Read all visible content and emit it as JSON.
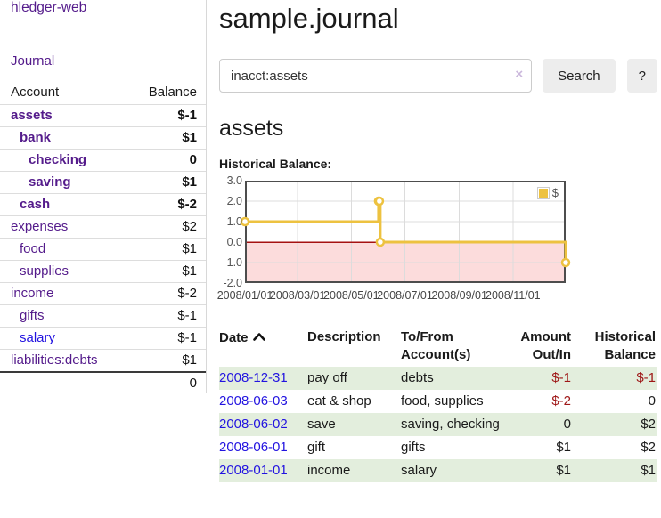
{
  "app": {
    "title": "hledger-web"
  },
  "colors": {
    "link_purple": "#541b8b",
    "link_blue": "#2213e0",
    "negative": "#9e1616",
    "negative_muted": "#c0797d",
    "row_stripe_green": "#e3eedd",
    "chart_line": "#edc240",
    "chart_negative_fill": "#fcdcdc",
    "chart_zero_line": "#a51212"
  },
  "sidebar": {
    "journal_link": "Journal",
    "table": {
      "account_header": "Account",
      "balance_header": "Balance",
      "rows": [
        {
          "account": "assets",
          "balance": "$-1",
          "depth": 0,
          "bold": true,
          "balance_style": "neg"
        },
        {
          "account": "bank",
          "balance": "$1",
          "depth": 1,
          "bold": true,
          "balance_style": "pos"
        },
        {
          "account": "checking",
          "balance": "0",
          "depth": 2,
          "bold": true,
          "balance_style": "pos"
        },
        {
          "account": "saving",
          "balance": "$1",
          "depth": 2,
          "bold": true,
          "balance_style": "pos"
        },
        {
          "account": "cash",
          "balance": "$-2",
          "depth": 1,
          "bold": true,
          "balance_style": "neg"
        },
        {
          "account": "expenses",
          "balance": "$2",
          "depth": 0,
          "bold": false,
          "balance_style": "pos"
        },
        {
          "account": "food",
          "balance": "$1",
          "depth": 1,
          "bold": false,
          "balance_style": "pos"
        },
        {
          "account": "supplies",
          "balance": "$1",
          "depth": 1,
          "bold": false,
          "balance_style": "pos"
        },
        {
          "account": "income",
          "balance": "$-2",
          "depth": 0,
          "bold": false,
          "balance_style": "mneg"
        },
        {
          "account": "gifts",
          "balance": "$-1",
          "depth": 1,
          "bold": false,
          "balance_style": "mneg"
        },
        {
          "account": "salary",
          "balance": "$-1",
          "depth": 1,
          "bold": false,
          "balance_style": "mneg",
          "link_color": "blue"
        },
        {
          "account": "liabilities:debts",
          "balance": "$1",
          "depth": 0,
          "bold": false,
          "balance_style": "pos"
        }
      ],
      "total": "0"
    }
  },
  "header": {
    "title": "sample.journal"
  },
  "search": {
    "value": "inacct:assets",
    "clear_icon": "×",
    "button_label": "Search",
    "help_label": "?"
  },
  "account_page": {
    "heading": "assets",
    "chart_label": "Historical Balance:"
  },
  "chart_data": {
    "type": "line",
    "mode": "steps",
    "title": "Historical Balance",
    "series": [
      {
        "name": "$",
        "color": "#edc240",
        "points": [
          [
            "2008-01-01",
            1
          ],
          [
            "2008-06-01",
            2
          ],
          [
            "2008-06-02",
            2
          ],
          [
            "2008-06-03",
            0
          ],
          [
            "2008-12-31",
            -1
          ]
        ]
      }
    ],
    "x_range": [
      "2008-01-01",
      "2008-12-31"
    ],
    "x_ticks": [
      "2008/01/01",
      "2008/03/01",
      "2008/05/01",
      "2008/07/01",
      "2008/09/01",
      "2008/11/01"
    ],
    "y_ticks": [
      3.0,
      2.0,
      1.0,
      0.0,
      -1.0,
      -2.0
    ],
    "ylim": [
      -2,
      3
    ],
    "grid": true,
    "legend": {
      "label": "$",
      "position": "top-right"
    },
    "negative_region_fill": "#fcdcdc",
    "zero_line_color": "#a51212"
  },
  "register": {
    "sort": {
      "column": "date",
      "direction": "asc"
    },
    "columns": {
      "date": "Date",
      "description": "Description",
      "accounts": "To/From Account(s)",
      "amount": "Amount Out/In",
      "balance": "Historical Balance"
    },
    "rows": [
      {
        "date": "2008-12-31",
        "description": "pay off",
        "accounts": "debts",
        "amount": "$-1",
        "amount_negative": true,
        "balance": "$-1",
        "balance_negative": true,
        "striped": true
      },
      {
        "date": "2008-06-03",
        "description": "eat & shop",
        "accounts": "food, supplies",
        "amount": "$-2",
        "amount_negative": true,
        "balance": "0",
        "balance_negative": false,
        "striped": false
      },
      {
        "date": "2008-06-02",
        "description": "save",
        "accounts": "saving, checking",
        "amount": "0",
        "amount_negative": false,
        "balance": "$2",
        "balance_negative": false,
        "striped": true
      },
      {
        "date": "2008-06-01",
        "description": "gift",
        "accounts": "gifts",
        "amount": "$1",
        "amount_negative": false,
        "balance": "$2",
        "balance_negative": false,
        "striped": false
      },
      {
        "date": "2008-01-01",
        "description": "income",
        "accounts": "salary",
        "amount": "$1",
        "amount_negative": false,
        "balance": "$1",
        "balance_negative": false,
        "striped": true
      }
    ]
  }
}
